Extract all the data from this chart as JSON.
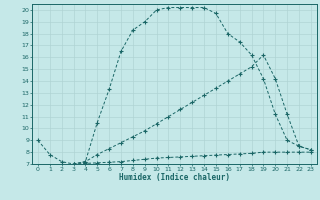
{
  "title": "",
  "xlabel": "Humidex (Indice chaleur)",
  "xlim": [
    -0.5,
    23.5
  ],
  "ylim": [
    7,
    20.5
  ],
  "yticks": [
    7,
    8,
    9,
    10,
    11,
    12,
    13,
    14,
    15,
    16,
    17,
    18,
    19,
    20
  ],
  "xticks": [
    0,
    1,
    2,
    3,
    4,
    5,
    6,
    7,
    8,
    9,
    10,
    11,
    12,
    13,
    14,
    15,
    16,
    17,
    18,
    19,
    20,
    21,
    22,
    23
  ],
  "bg_color": "#c5e8e8",
  "line_color": "#1a6666",
  "grid_color": "#b0d4d4",
  "curve1_x": [
    0,
    1,
    2,
    3,
    4,
    5,
    6,
    7,
    8,
    9,
    10,
    11,
    12,
    13,
    14,
    15,
    16,
    17,
    18,
    19,
    20,
    21,
    22,
    23
  ],
  "curve1_y": [
    9.0,
    7.8,
    7.2,
    7.0,
    7.2,
    10.5,
    13.3,
    16.5,
    18.3,
    19.0,
    20.0,
    20.2,
    20.2,
    20.2,
    20.2,
    19.7,
    18.0,
    17.3,
    16.2,
    14.2,
    11.2,
    9.0,
    8.5,
    8.2
  ],
  "curve2_x": [
    3,
    4,
    5,
    6,
    7,
    8,
    9,
    10,
    11,
    12,
    13,
    14,
    15,
    16,
    17,
    18,
    19,
    20,
    21,
    22,
    23
  ],
  "curve2_y": [
    7.0,
    7.2,
    7.8,
    8.3,
    8.8,
    9.3,
    9.8,
    10.4,
    11.0,
    11.6,
    12.2,
    12.8,
    13.4,
    14.0,
    14.6,
    15.2,
    16.2,
    14.2,
    11.2,
    8.5,
    8.2
  ],
  "curve3_x": [
    3,
    4,
    5,
    6,
    7,
    8,
    9,
    10,
    11,
    12,
    13,
    14,
    15,
    16,
    17,
    18,
    19,
    20,
    21,
    22,
    23
  ],
  "curve3_y": [
    7.0,
    7.05,
    7.1,
    7.15,
    7.2,
    7.3,
    7.4,
    7.5,
    7.55,
    7.6,
    7.65,
    7.7,
    7.75,
    7.8,
    7.85,
    7.9,
    8.0,
    8.0,
    8.0,
    8.0,
    8.0
  ]
}
